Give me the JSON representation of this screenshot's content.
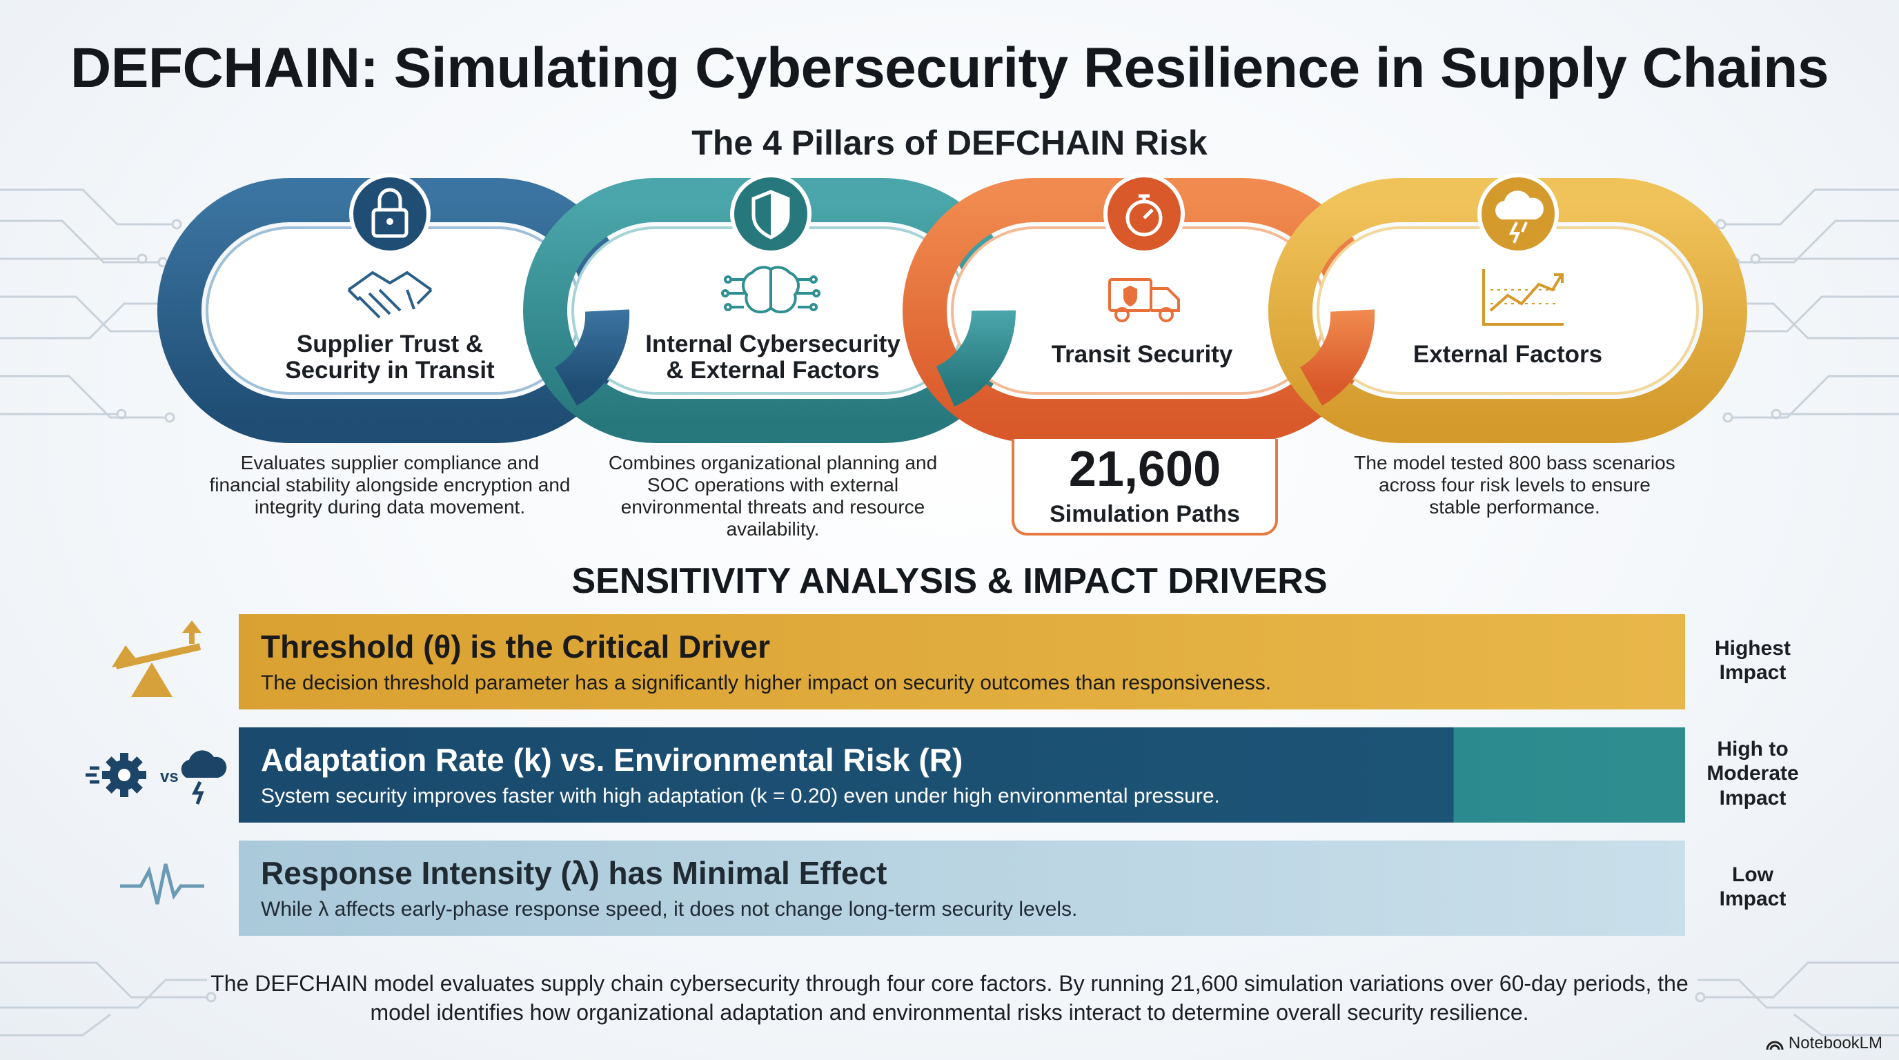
{
  "title": "DEFCHAIN: Simulating Cybersecurity Resilience in Supply Chains",
  "pillars_subtitle": "The 4 Pillars of DEFCHAIN Risk",
  "pillars": [
    {
      "label": "Supplier Trust &\nSecurity in Transit",
      "top_icon": "lock-icon",
      "inner_icon": "handshake-icon",
      "color": "#2a5f8a",
      "description": "Evaluates supplier compliance and financial stability alongside encryption and integrity during data movement."
    },
    {
      "label": "Internal Cybersecurity\n& External Factors",
      "top_icon": "shield-icon",
      "inner_icon": "brain-circuit-icon",
      "color": "#2f8f93",
      "description": "Combines organizational planning and SOC operations with external environmental threats and resource availability."
    },
    {
      "label": "Transit Security",
      "top_icon": "stopwatch-icon",
      "inner_icon": "truck-icon",
      "color": "#e8703a",
      "simulation_number": "21,600",
      "simulation_label": "Simulation Paths"
    },
    {
      "label": "External Factors",
      "top_icon": "storm-cloud-icon",
      "inner_icon": "line-chart-icon",
      "color": "#e2a93c",
      "description": "The model tested 800 bass scenarios across four risk levels to ensure stable performance."
    }
  ],
  "sensitivity_title": "SENSITIVITY ANALYSIS & IMPACT DRIVERS",
  "drivers": [
    {
      "title": "Threshold (θ) is the Critical Driver",
      "description": "The decision threshold parameter has a significantly higher impact on security outcomes than responsiveness.",
      "impact": "Highest\nImpact",
      "icon": "seesaw-icon",
      "color": "#e0ab3f"
    },
    {
      "title": "Adaptation Rate (k) vs. Environmental Risk (R)",
      "description": "System security improves faster with high adaptation (k = 0.20) even under high environmental pressure.",
      "impact": "High to\nModerate\nImpact",
      "icon": "gear-vs-storm-icon",
      "icon_text": "vs",
      "color": "#1c5476"
    },
    {
      "title": "Response Intensity (λ) has Minimal Effect",
      "description": "While λ affects early-phase response speed, it does not change long-term security levels.",
      "impact": "Low\nImpact",
      "icon": "pulse-wave-icon",
      "color": "#b8d4e3"
    }
  ],
  "footer": "The DEFCHAIN model evaluates supply chain cybersecurity through four core factors. By running 21,600 simulation variations over 60-day periods, the model identifies how organizational adaptation and environmental risks interact to determine overall security resilience.",
  "brand": "NotebookLM"
}
